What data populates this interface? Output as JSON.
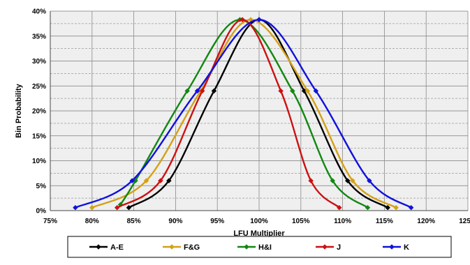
{
  "chart_data": {
    "type": "line",
    "title": "",
    "xlabel": "LFU Multiplier",
    "ylabel": "Bin Probability",
    "xlim": [
      75,
      125
    ],
    "ylim": [
      0,
      40
    ],
    "x_ticks": [
      "75%",
      "80%",
      "85%",
      "90%",
      "95%",
      "100%",
      "105%",
      "110%",
      "115%",
      "120%",
      "125%"
    ],
    "y_ticks": [
      "0%",
      "5%",
      "10%",
      "15%",
      "20%",
      "25%",
      "30%",
      "35%",
      "40%"
    ],
    "grid": true,
    "legend_position": "bottom",
    "series": [
      {
        "name": "A-E",
        "color": "#000000",
        "x": [
          84.4,
          89.2,
          94.6,
          100.0,
          105.4,
          110.6,
          115.4
        ],
        "y": [
          0.6,
          6.0,
          24.0,
          38.3,
          24.0,
          6.0,
          0.6
        ]
      },
      {
        "name": "F&G",
        "color": "#D4A017",
        "x": [
          80.0,
          86.5,
          93.0,
          99.0,
          105.8,
          111.2,
          116.4
        ],
        "y": [
          0.6,
          6.0,
          24.0,
          38.3,
          24.0,
          6.0,
          0.6
        ]
      },
      {
        "name": "H&I",
        "color": "#118811",
        "x": [
          83.4,
          85.2,
          91.4,
          97.7,
          104.0,
          108.8,
          113.0
        ],
        "y": [
          1.2,
          6.0,
          24.0,
          38.3,
          24.0,
          6.0,
          0.6
        ]
      },
      {
        "name": "J",
        "color": "#CC1111",
        "x": [
          83.0,
          88.2,
          93.2,
          98.0,
          102.6,
          106.2,
          109.6
        ],
        "y": [
          0.6,
          6.0,
          24.0,
          38.3,
          24.0,
          6.0,
          0.6
        ]
      },
      {
        "name": "K",
        "color": "#1111DD",
        "x": [
          78.0,
          84.8,
          92.6,
          100.0,
          106.8,
          113.2,
          118.2
        ],
        "y": [
          0.6,
          6.0,
          24.0,
          38.3,
          24.0,
          6.0,
          0.6
        ]
      }
    ]
  }
}
